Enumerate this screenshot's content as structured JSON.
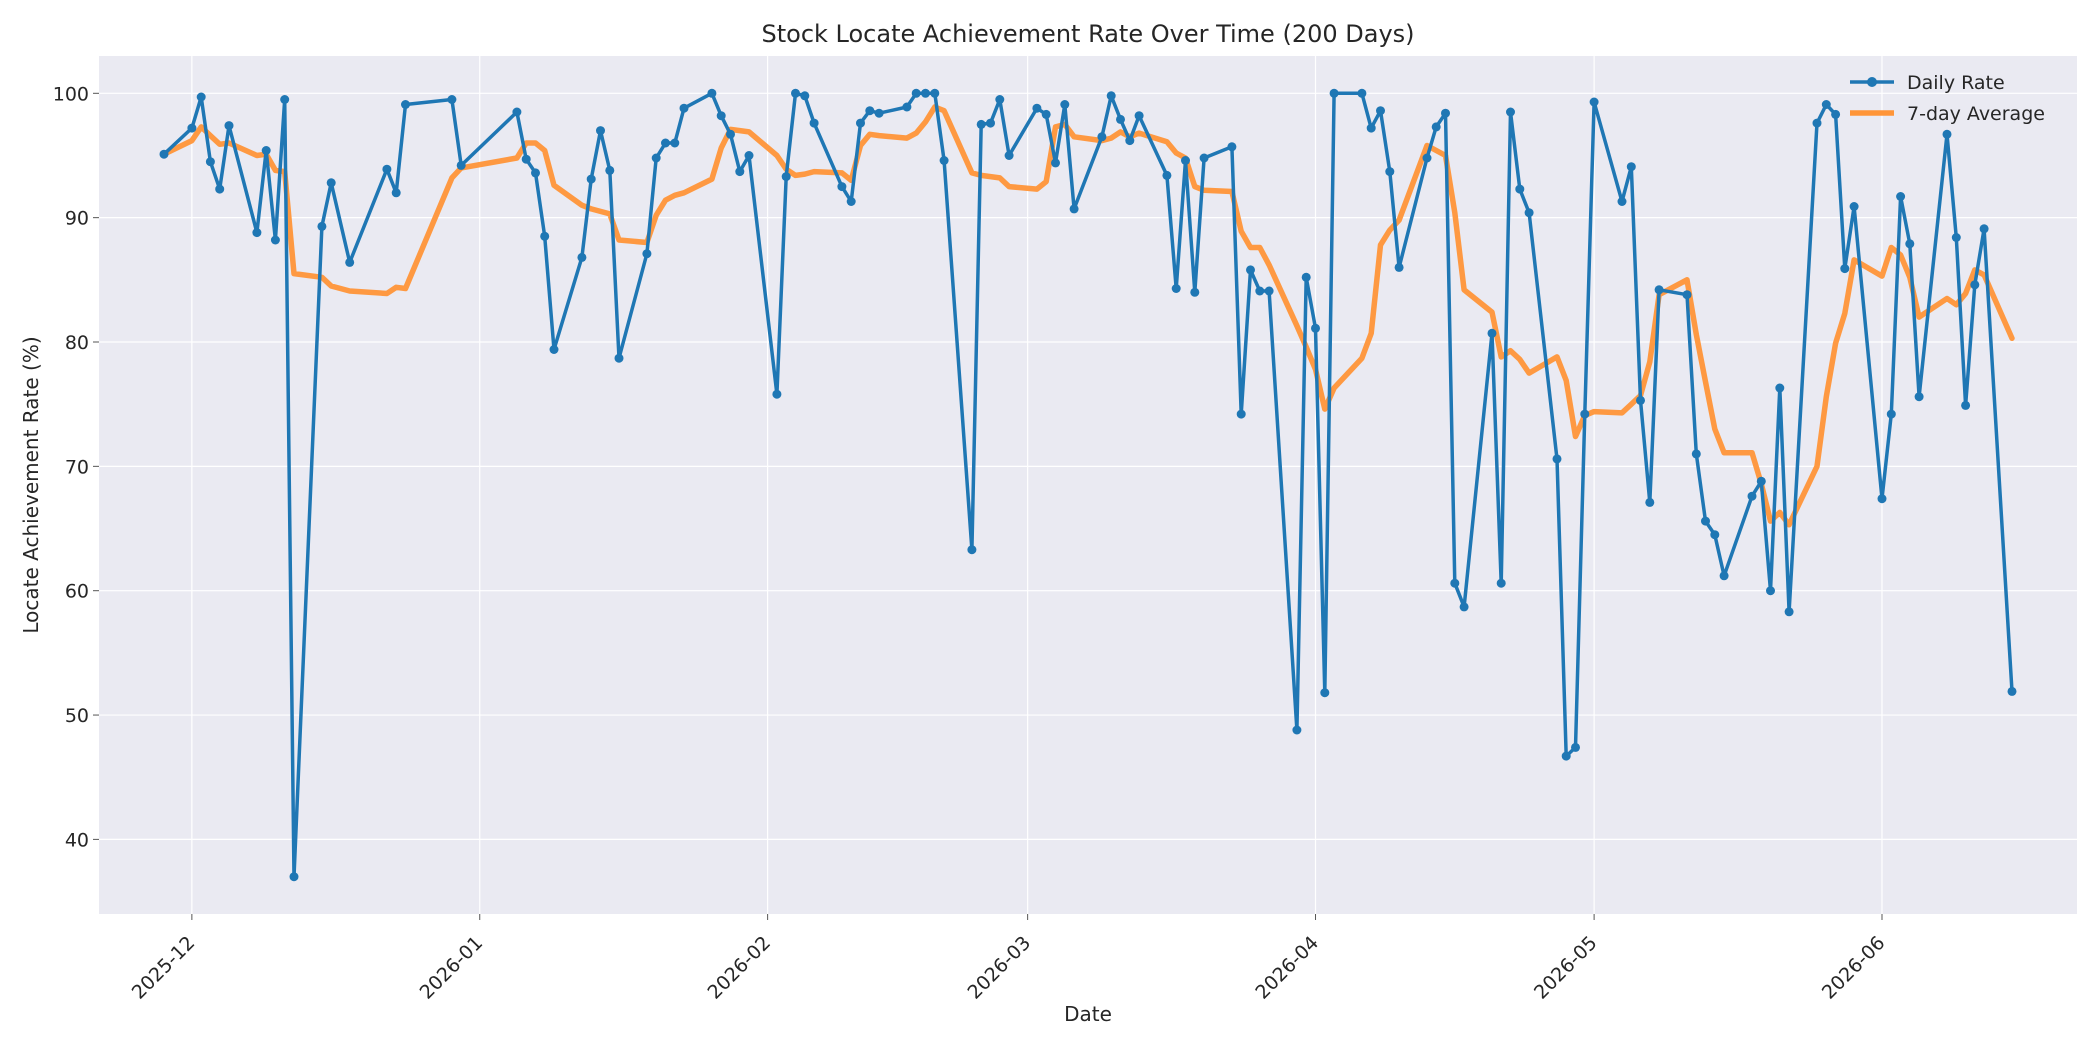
{
  "chart_data": {
    "type": "line",
    "title": "Stock Locate Achievement Rate Over Time (200 Days)",
    "xlabel": "Date",
    "ylabel": "Locate Achievement Rate (%)",
    "xlim": [
      "2025-11-21",
      "2026-06-22"
    ],
    "ylim": [
      34,
      103
    ],
    "y_ticks": [
      40,
      50,
      60,
      70,
      80,
      90,
      100
    ],
    "x_ticks": [
      {
        "date": "2025-12-01",
        "label": "2025-12"
      },
      {
        "date": "2026-01-01",
        "label": "2026-01"
      },
      {
        "date": "2026-02-01",
        "label": "2026-02"
      },
      {
        "date": "2026-03-01",
        "label": "2026-03"
      },
      {
        "date": "2026-04-01",
        "label": "2026-04"
      },
      {
        "date": "2026-05-01",
        "label": "2026-05"
      },
      {
        "date": "2026-06-01",
        "label": "2026-06"
      }
    ],
    "grid": true,
    "legend_position": "top-right",
    "background_color": "#eaeaf2",
    "series": [
      {
        "name": "Daily Rate",
        "color": "#1f77b4",
        "style": "line-markers",
        "points": [
          [
            "2025-11-28",
            95.1
          ],
          [
            "2025-12-01",
            97.2
          ],
          [
            "2025-12-02",
            99.7
          ],
          [
            "2025-12-03",
            94.5
          ],
          [
            "2025-12-04",
            92.3
          ],
          [
            "2025-12-05",
            97.4
          ],
          [
            "2025-12-08",
            88.8
          ],
          [
            "2025-12-09",
            95.4
          ],
          [
            "2025-12-10",
            88.2
          ],
          [
            "2025-12-11",
            99.5
          ],
          [
            "2025-12-12",
            37.0
          ],
          [
            "2025-12-15",
            89.3
          ],
          [
            "2025-12-16",
            92.8
          ],
          [
            "2025-12-18",
            86.4
          ],
          [
            "2025-12-22",
            93.9
          ],
          [
            "2025-12-23",
            92.0
          ],
          [
            "2025-12-24",
            99.1
          ],
          [
            "2025-12-29",
            99.5
          ],
          [
            "2025-12-30",
            94.2
          ],
          [
            "2026-01-05",
            98.5
          ],
          [
            "2026-01-06",
            94.7
          ],
          [
            "2026-01-07",
            93.6
          ],
          [
            "2026-01-08",
            88.5
          ],
          [
            "2026-01-09",
            79.4
          ],
          [
            "2026-01-12",
            86.8
          ],
          [
            "2026-01-13",
            93.1
          ],
          [
            "2026-01-14",
            97.0
          ],
          [
            "2026-01-15",
            93.8
          ],
          [
            "2026-01-16",
            78.7
          ],
          [
            "2026-01-19",
            87.1
          ],
          [
            "2026-01-20",
            94.8
          ],
          [
            "2026-01-21",
            96.0
          ],
          [
            "2026-01-22",
            96.0
          ],
          [
            "2026-01-23",
            98.8
          ],
          [
            "2026-01-26",
            100.0
          ],
          [
            "2026-01-27",
            98.2
          ],
          [
            "2026-01-28",
            96.7
          ],
          [
            "2026-01-29",
            93.7
          ],
          [
            "2026-01-30",
            95.0
          ],
          [
            "2026-02-02",
            75.8
          ],
          [
            "2026-02-03",
            93.3
          ],
          [
            "2026-02-04",
            100.0
          ],
          [
            "2026-02-05",
            99.8
          ],
          [
            "2026-02-06",
            97.6
          ],
          [
            "2026-02-09",
            92.5
          ],
          [
            "2026-02-10",
            91.3
          ],
          [
            "2026-02-11",
            97.6
          ],
          [
            "2026-02-12",
            98.6
          ],
          [
            "2026-02-13",
            98.4
          ],
          [
            "2026-02-16",
            98.9
          ],
          [
            "2026-02-17",
            100.0
          ],
          [
            "2026-02-18",
            100.0
          ],
          [
            "2026-02-19",
            100.0
          ],
          [
            "2026-02-20",
            94.6
          ],
          [
            "2026-02-23",
            63.3
          ],
          [
            "2026-02-24",
            97.5
          ],
          [
            "2026-02-25",
            97.6
          ],
          [
            "2026-02-26",
            99.5
          ],
          [
            "2026-02-27",
            95.0
          ],
          [
            "2026-03-02",
            98.8
          ],
          [
            "2026-03-03",
            98.3
          ],
          [
            "2026-03-04",
            94.4
          ],
          [
            "2026-03-05",
            99.1
          ],
          [
            "2026-03-06",
            90.7
          ],
          [
            "2026-03-09",
            96.5
          ],
          [
            "2026-03-10",
            99.8
          ],
          [
            "2026-03-11",
            97.9
          ],
          [
            "2026-03-12",
            96.2
          ],
          [
            "2026-03-13",
            98.2
          ],
          [
            "2026-03-16",
            93.4
          ],
          [
            "2026-03-17",
            84.3
          ],
          [
            "2026-03-18",
            94.6
          ],
          [
            "2026-03-19",
            84.0
          ],
          [
            "2026-03-20",
            94.8
          ],
          [
            "2026-03-23",
            95.7
          ],
          [
            "2026-03-24",
            74.2
          ],
          [
            "2026-03-25",
            85.8
          ],
          [
            "2026-03-26",
            84.1
          ],
          [
            "2026-03-27",
            84.1
          ],
          [
            "2026-03-30",
            48.8
          ],
          [
            "2026-03-31",
            85.2
          ],
          [
            "2026-04-01",
            81.1
          ],
          [
            "2026-04-02",
            51.8
          ],
          [
            "2026-04-03",
            100.0
          ],
          [
            "2026-04-06",
            100.0
          ],
          [
            "2026-04-07",
            97.2
          ],
          [
            "2026-04-08",
            98.6
          ],
          [
            "2026-04-09",
            93.7
          ],
          [
            "2026-04-10",
            86.0
          ],
          [
            "2026-04-13",
            94.8
          ],
          [
            "2026-04-14",
            97.3
          ],
          [
            "2026-04-15",
            98.4
          ],
          [
            "2026-04-16",
            60.6
          ],
          [
            "2026-04-17",
            58.7
          ],
          [
            "2026-04-20",
            80.7
          ],
          [
            "2026-04-21",
            60.6
          ],
          [
            "2026-04-22",
            98.5
          ],
          [
            "2026-04-23",
            92.3
          ],
          [
            "2026-04-24",
            90.4
          ],
          [
            "2026-04-27",
            70.6
          ],
          [
            "2026-04-28",
            46.7
          ],
          [
            "2026-04-29",
            47.4
          ],
          [
            "2026-04-30",
            74.2
          ],
          [
            "2026-05-01",
            99.3
          ],
          [
            "2026-05-04",
            91.3
          ],
          [
            "2026-05-05",
            94.1
          ],
          [
            "2026-05-06",
            75.3
          ],
          [
            "2026-05-07",
            67.1
          ],
          [
            "2026-05-08",
            84.2
          ],
          [
            "2026-05-11",
            83.8
          ],
          [
            "2026-05-12",
            71.0
          ],
          [
            "2026-05-13",
            65.6
          ],
          [
            "2026-05-14",
            64.5
          ],
          [
            "2026-05-15",
            61.2
          ],
          [
            "2026-05-18",
            67.6
          ],
          [
            "2026-05-19",
            68.8
          ],
          [
            "2026-05-20",
            60.0
          ],
          [
            "2026-05-21",
            76.3
          ],
          [
            "2026-05-22",
            58.3
          ],
          [
            "2026-05-25",
            97.6
          ],
          [
            "2026-05-26",
            99.1
          ],
          [
            "2026-05-27",
            98.3
          ],
          [
            "2026-05-28",
            85.9
          ],
          [
            "2026-05-29",
            90.9
          ],
          [
            "2026-06-01",
            67.4
          ],
          [
            "2026-06-02",
            74.2
          ],
          [
            "2026-06-03",
            91.7
          ],
          [
            "2026-06-04",
            87.9
          ],
          [
            "2026-06-05",
            75.6
          ],
          [
            "2026-06-08",
            96.7
          ],
          [
            "2026-06-09",
            88.4
          ],
          [
            "2026-06-10",
            74.9
          ],
          [
            "2026-06-11",
            84.6
          ],
          [
            "2026-06-12",
            89.1
          ],
          [
            "2026-06-15",
            51.9
          ]
        ]
      },
      {
        "name": "7-day Average",
        "color": "#ff9538",
        "style": "thick-line",
        "points": [
          [
            "2025-11-28",
            95.1
          ],
          [
            "2025-12-01",
            96.2
          ],
          [
            "2025-12-02",
            97.3
          ],
          [
            "2025-12-03",
            96.6
          ],
          [
            "2025-12-04",
            95.9
          ],
          [
            "2025-12-05",
            96.0
          ],
          [
            "2025-12-08",
            95.0
          ],
          [
            "2025-12-09",
            95.1
          ],
          [
            "2025-12-10",
            93.8
          ],
          [
            "2025-12-11",
            93.7
          ],
          [
            "2025-12-12",
            85.5
          ],
          [
            "2025-12-15",
            85.2
          ],
          [
            "2025-12-16",
            84.5
          ],
          [
            "2025-12-18",
            84.1
          ],
          [
            "2025-12-22",
            83.9
          ],
          [
            "2025-12-23",
            84.4
          ],
          [
            "2025-12-24",
            84.3
          ],
          [
            "2025-12-29",
            93.2
          ],
          [
            "2025-12-30",
            94.0
          ],
          [
            "2026-01-05",
            94.8
          ],
          [
            "2026-01-06",
            96.0
          ],
          [
            "2026-01-07",
            96.0
          ],
          [
            "2026-01-08",
            95.4
          ],
          [
            "2026-01-09",
            92.6
          ],
          [
            "2026-01-12",
            91.0
          ],
          [
            "2026-01-13",
            90.7
          ],
          [
            "2026-01-14",
            90.5
          ],
          [
            "2026-01-15",
            90.3
          ],
          [
            "2026-01-16",
            88.2
          ],
          [
            "2026-01-19",
            88.0
          ],
          [
            "2026-01-20",
            90.2
          ],
          [
            "2026-01-21",
            91.4
          ],
          [
            "2026-01-22",
            91.8
          ],
          [
            "2026-01-23",
            92.0
          ],
          [
            "2026-01-26",
            93.1
          ],
          [
            "2026-01-27",
            95.6
          ],
          [
            "2026-01-28",
            97.1
          ],
          [
            "2026-01-29",
            97.0
          ],
          [
            "2026-01-30",
            96.9
          ],
          [
            "2026-02-02",
            95.0
          ],
          [
            "2026-02-03",
            93.9
          ],
          [
            "2026-02-04",
            93.4
          ],
          [
            "2026-02-05",
            93.5
          ],
          [
            "2026-02-06",
            93.7
          ],
          [
            "2026-02-09",
            93.6
          ],
          [
            "2026-02-10",
            93.0
          ],
          [
            "2026-02-11",
            95.8
          ],
          [
            "2026-02-12",
            96.7
          ],
          [
            "2026-02-13",
            96.6
          ],
          [
            "2026-02-16",
            96.4
          ],
          [
            "2026-02-17",
            96.8
          ],
          [
            "2026-02-18",
            97.7
          ],
          [
            "2026-02-19",
            98.9
          ],
          [
            "2026-02-20",
            98.6
          ],
          [
            "2026-02-23",
            93.6
          ],
          [
            "2026-02-24",
            93.4
          ],
          [
            "2026-02-25",
            93.3
          ],
          [
            "2026-02-26",
            93.2
          ],
          [
            "2026-02-27",
            92.5
          ],
          [
            "2026-03-02",
            92.3
          ],
          [
            "2026-03-03",
            92.9
          ],
          [
            "2026-03-04",
            97.3
          ],
          [
            "2026-03-05",
            97.5
          ],
          [
            "2026-03-06",
            96.5
          ],
          [
            "2026-03-09",
            96.2
          ],
          [
            "2026-03-10",
            96.4
          ],
          [
            "2026-03-11",
            96.9
          ],
          [
            "2026-03-12",
            96.5
          ],
          [
            "2026-03-13",
            96.8
          ],
          [
            "2026-03-16",
            96.1
          ],
          [
            "2026-03-17",
            95.2
          ],
          [
            "2026-03-18",
            94.8
          ],
          [
            "2026-03-19",
            92.5
          ],
          [
            "2026-03-20",
            92.2
          ],
          [
            "2026-03-23",
            92.1
          ],
          [
            "2026-03-24",
            88.9
          ],
          [
            "2026-03-25",
            87.6
          ],
          [
            "2026-03-26",
            87.6
          ],
          [
            "2026-03-27",
            86.2
          ],
          [
            "2026-03-30",
            81.3
          ],
          [
            "2026-03-31",
            79.6
          ],
          [
            "2026-04-01",
            77.8
          ],
          [
            "2026-04-02",
            74.6
          ],
          [
            "2026-04-03",
            76.3
          ],
          [
            "2026-04-06",
            78.7
          ],
          [
            "2026-04-07",
            80.7
          ],
          [
            "2026-04-08",
            87.8
          ],
          [
            "2026-04-09",
            89.0
          ],
          [
            "2026-04-10",
            89.8
          ],
          [
            "2026-04-13",
            95.8
          ],
          [
            "2026-04-14",
            95.4
          ],
          [
            "2026-04-15",
            95.0
          ],
          [
            "2026-04-16",
            90.4
          ],
          [
            "2026-04-17",
            84.2
          ],
          [
            "2026-04-20",
            82.4
          ],
          [
            "2026-04-21",
            78.8
          ],
          [
            "2026-04-22",
            79.3
          ],
          [
            "2026-04-23",
            78.6
          ],
          [
            "2026-04-24",
            77.5
          ],
          [
            "2026-04-27",
            78.8
          ],
          [
            "2026-04-28",
            76.9
          ],
          [
            "2026-04-29",
            72.4
          ],
          [
            "2026-04-30",
            74.1
          ],
          [
            "2026-05-01",
            74.4
          ],
          [
            "2026-05-04",
            74.3
          ],
          [
            "2026-05-05",
            75.0
          ],
          [
            "2026-05-06",
            75.7
          ],
          [
            "2026-05-07",
            78.4
          ],
          [
            "2026-05-08",
            83.8
          ],
          [
            "2026-05-11",
            85.0
          ],
          [
            "2026-05-12",
            80.6
          ],
          [
            "2026-05-13",
            76.8
          ],
          [
            "2026-05-14",
            73.0
          ],
          [
            "2026-05-15",
            71.1
          ],
          [
            "2026-05-18",
            71.1
          ],
          [
            "2026-05-19",
            68.6
          ],
          [
            "2026-05-20",
            65.6
          ],
          [
            "2026-05-21",
            66.3
          ],
          [
            "2026-05-22",
            65.3
          ],
          [
            "2026-05-25",
            70.0
          ],
          [
            "2026-05-26",
            75.6
          ],
          [
            "2026-05-27",
            79.9
          ],
          [
            "2026-05-28",
            82.3
          ],
          [
            "2026-05-29",
            86.6
          ],
          [
            "2026-06-01",
            85.3
          ],
          [
            "2026-06-02",
            87.6
          ],
          [
            "2026-06-03",
            87.0
          ],
          [
            "2026-06-04",
            85.2
          ],
          [
            "2026-06-05",
            82.0
          ],
          [
            "2026-06-08",
            83.5
          ],
          [
            "2026-06-09",
            83.0
          ],
          [
            "2026-06-10",
            83.9
          ],
          [
            "2026-06-11",
            85.8
          ],
          [
            "2026-06-12",
            85.4
          ],
          [
            "2026-06-15",
            80.3
          ]
        ]
      }
    ]
  }
}
